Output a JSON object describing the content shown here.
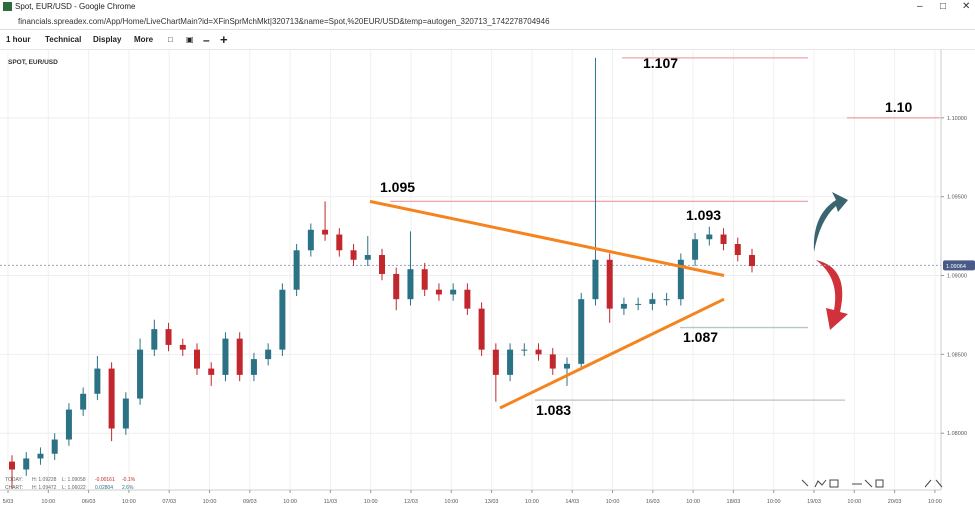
{
  "window": {
    "title": "Spot, EUR/USD - Google Chrome",
    "url": "financials.spreadex.com/App/Home/LiveChartMain?id=XFinSprMchMkt|320713&name=Spot,%20EUR/USD&temp=autogen_320713_1742278704946"
  },
  "toolbar": {
    "items": [
      "1 hour",
      "Technical",
      "Display",
      "More"
    ]
  },
  "chart_data": {
    "type": "candlestick",
    "title": "SPOT, EUR/USD",
    "up_color": "#2b7285",
    "down_color": "#c1272d",
    "open": [
      1.0782,
      1.0777,
      1.0784,
      1.0787,
      1.0796,
      1.0815,
      1.0825,
      1.0841,
      1.0803,
      1.0822,
      1.0853,
      1.0866,
      1.0856,
      1.0853,
      1.0841,
      1.0837,
      1.086,
      1.0837,
      1.0847,
      1.0853,
      1.0891,
      1.0916,
      1.0929,
      1.0926,
      1.0916,
      1.091,
      1.0913,
      1.0901,
      1.0885,
      1.0904,
      1.0891,
      1.0888,
      1.0891,
      1.0879,
      1.0853,
      1.0837,
      1.0853,
      1.0853,
      1.085,
      1.0841,
      1.0844,
      1.0885,
      1.091,
      1.0879,
      1.0882,
      1.0882,
      1.0885,
      1.0885,
      1.091,
      1.0923,
      1.0926,
      1.092,
      1.0913
    ],
    "high": [
      1.0786,
      1.0788,
      1.0791,
      1.08,
      1.0819,
      1.0829,
      1.0849,
      1.0845,
      1.0826,
      1.086,
      1.0872,
      1.087,
      1.086,
      1.0857,
      1.0845,
      1.0864,
      1.0864,
      1.0851,
      1.0857,
      1.0895,
      1.092,
      1.0933,
      1.0947,
      1.093,
      1.092,
      1.0925,
      1.0917,
      1.0905,
      1.0928,
      1.0908,
      1.0895,
      1.0895,
      1.0895,
      1.0883,
      1.0857,
      1.0857,
      1.0857,
      1.0857,
      1.0854,
      1.0848,
      1.0889,
      1.1038,
      1.0914,
      1.0886,
      1.0886,
      1.0889,
      1.0889,
      1.0914,
      1.0927,
      1.0931,
      1.093,
      1.0924,
      1.0917
    ],
    "low": [
      1.0765,
      1.0773,
      1.078,
      1.0783,
      1.0792,
      1.0811,
      1.0821,
      1.0795,
      1.0799,
      1.0818,
      1.0849,
      1.0852,
      1.0849,
      1.0837,
      1.083,
      1.0833,
      1.0833,
      1.0833,
      1.0843,
      1.0849,
      1.0887,
      1.0912,
      1.0922,
      1.0912,
      1.0906,
      1.0906,
      1.0897,
      1.0878,
      1.0881,
      1.0887,
      1.0884,
      1.0884,
      1.0875,
      1.0849,
      1.082,
      1.0833,
      1.0849,
      1.0846,
      1.0837,
      1.083,
      1.084,
      1.0881,
      1.087,
      1.0875,
      1.0878,
      1.0878,
      1.0881,
      1.0881,
      1.0906,
      1.0919,
      1.0916,
      1.0909,
      1.0902
    ],
    "close": [
      1.0777,
      1.0784,
      1.0787,
      1.0796,
      1.0815,
      1.0825,
      1.0841,
      1.0803,
      1.0822,
      1.0853,
      1.0866,
      1.0856,
      1.0853,
      1.0841,
      1.0837,
      1.086,
      1.0837,
      1.0847,
      1.0853,
      1.0891,
      1.0916,
      1.0929,
      1.0926,
      1.0916,
      1.091,
      1.0913,
      1.0901,
      1.0885,
      1.0904,
      1.0891,
      1.0888,
      1.0891,
      1.0879,
      1.0853,
      1.0837,
      1.0853,
      1.0853,
      1.085,
      1.0841,
      1.0844,
      1.0885,
      1.091,
      1.0879,
      1.0882,
      1.0882,
      1.0885,
      1.0885,
      1.091,
      1.0923,
      1.0926,
      1.092,
      1.0913,
      1.0906
    ],
    "ylim": [
      1.0764,
      1.1043
    ],
    "yticks": [
      {
        "value": 1.08,
        "label": "1.08000"
      },
      {
        "value": 1.085,
        "label": "1.08500"
      },
      {
        "value": 1.09,
        "label": "1.09000"
      },
      {
        "value": 1.095,
        "label": "1.09500"
      },
      {
        "value": 1.1,
        "label": "1.10000"
      }
    ],
    "grid": true,
    "current_price": {
      "value": 1.09064,
      "label": "1.09064"
    },
    "x_labels": [
      "5/03",
      "10:00",
      "06/03",
      "10:00",
      "07/03",
      "10:00",
      "09/03",
      "10:00",
      "11/03",
      "10:00",
      "12/03",
      "10:00",
      "13/03",
      "10:00",
      "14/03",
      "10:00",
      "16/03",
      "10:00",
      "18/03",
      "10:00",
      "19/03",
      "10:00",
      "20/03",
      "10:00"
    ],
    "levels": [
      {
        "value": 1.1038,
        "color": "#f2a3a8"
      },
      {
        "value": 1.1,
        "color": "#f2a3a8"
      },
      {
        "value": 1.0947,
        "color": "#f2a3a8"
      },
      {
        "value": 1.0867,
        "color": "#b9c6c9"
      },
      {
        "value": 1.0821,
        "color": "#b9c6c9"
      }
    ],
    "trendlines": [
      {
        "values": [
          1.0947,
          1.09
        ],
        "color": "#f5841f"
      },
      {
        "values": [
          1.0816,
          1.0885
        ],
        "color": "#f5841f"
      }
    ],
    "annotations": [
      "1.107",
      "1.10",
      "1.095",
      "1.093",
      "1.087",
      "1.083"
    ],
    "info": [
      [
        "TODAY:",
        "H: 1.09228",
        "L: 1.09058",
        "-0.00161",
        "-0.1%"
      ],
      [
        "CHART:",
        "H: 1.09472",
        "L: 1.06022",
        "0.02804",
        "2.6%"
      ]
    ]
  }
}
